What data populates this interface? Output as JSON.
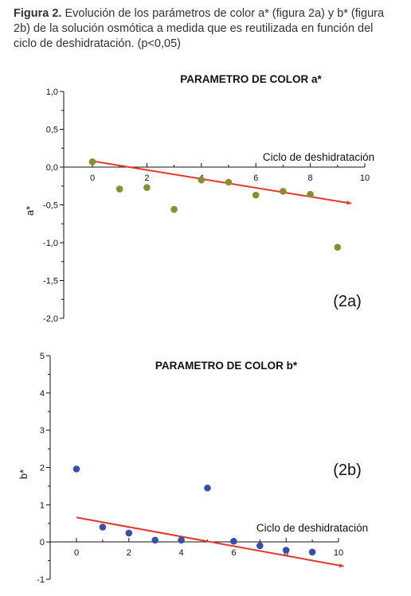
{
  "caption": {
    "label": "Figura 2.",
    "text": " Evolución de los parámetros de color a* (figura 2a) y  b* (figura 2b) de la solución osmótica a medida que es reutilizada en función del ciclo de deshidratación. (p<0,05)"
  },
  "chart_data": [
    {
      "type": "scatter",
      "title": "PARAMETRO DE COLOR a*",
      "panel_label": "(2a)",
      "xlabel": "Ciclo de deshidratación",
      "ylabel": "a*",
      "xlim": [
        0,
        10
      ],
      "ylim": [
        -2.0,
        1.0
      ],
      "x_ticks": [
        "0",
        "2",
        "4",
        "6",
        "8",
        "10"
      ],
      "y_ticks": [
        "1,0",
        "0,5",
        "0,0",
        "-0,5",
        "-1,0",
        "-1,5",
        "-2,0"
      ],
      "grid": false,
      "marker_color": "#8c8c32",
      "trend_color": "#e0382b",
      "series": [
        {
          "x": [
            0,
            1,
            2,
            3,
            4,
            5,
            6,
            7,
            8,
            9
          ],
          "y": [
            0.07,
            -0.29,
            -0.27,
            -0.56,
            -0.17,
            -0.2,
            -0.37,
            -0.32,
            -0.36,
            -1.06
          ]
        }
      ],
      "trendline": {
        "x": [
          0,
          9.5
        ],
        "y": [
          0.08,
          -0.48
        ]
      }
    },
    {
      "type": "scatter",
      "title": "PARAMETRO DE COLOR b*",
      "panel_label": "(2b)",
      "xlabel": "Ciclo de deshidratación",
      "ylabel": "b*",
      "xlim": [
        0,
        10
      ],
      "ylim": [
        -1,
        5
      ],
      "x_ticks": [
        "0",
        "2",
        "4",
        "6",
        "8",
        "10"
      ],
      "y_ticks": [
        "5",
        "4",
        "3",
        "2",
        "1",
        "0",
        "-1"
      ],
      "grid": false,
      "marker_color": "#3550a5",
      "trend_color": "#e0382b",
      "series": [
        {
          "x": [
            0,
            1,
            2,
            3,
            4,
            5,
            6,
            7,
            8,
            9
          ],
          "y": [
            1.96,
            0.4,
            0.24,
            0.05,
            0.05,
            1.45,
            0.02,
            -0.1,
            -0.22,
            -0.27
          ]
        }
      ],
      "trendline": {
        "x": [
          0,
          10.2
        ],
        "y": [
          0.66,
          -0.65
        ]
      }
    }
  ]
}
